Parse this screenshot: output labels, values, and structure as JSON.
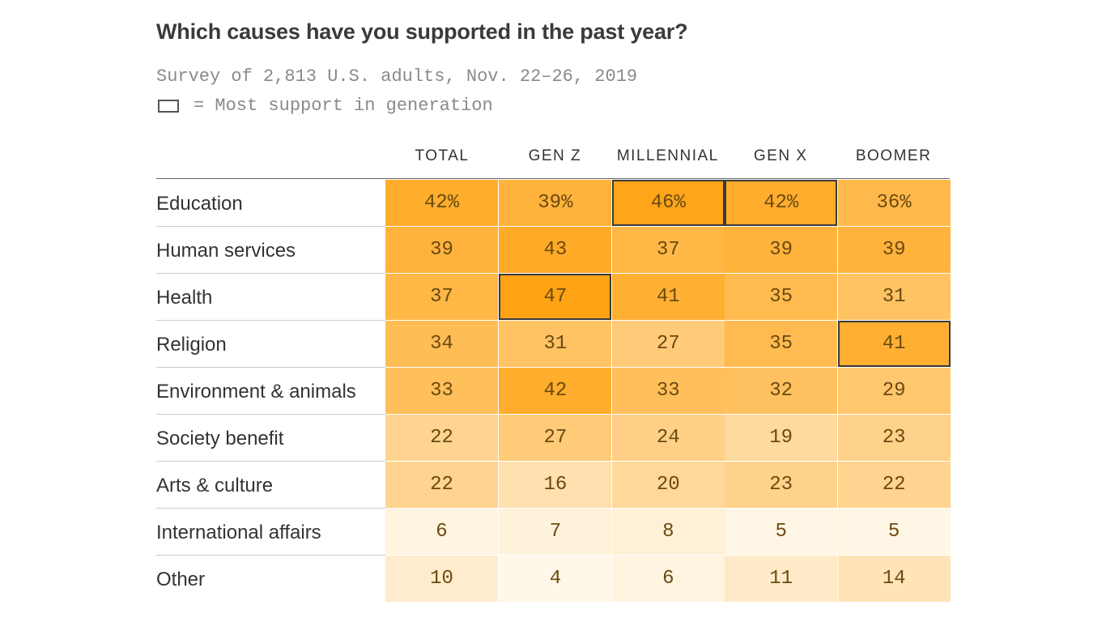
{
  "title": "Which causes have you supported in the past year?",
  "subtitle": "Survey of 2,813 U.S. adults, Nov. 22–26, 2019",
  "legend": "= Most support in generation",
  "chart_data": {
    "type": "heatmap",
    "columns": [
      "TOTAL",
      "GEN Z",
      "MILLENNIAL",
      "GEN X",
      "BOOMER"
    ],
    "rows": [
      "Education",
      "Human services",
      "Health",
      "Religion",
      "Environment & animals",
      "Society benefit",
      "Arts & culture",
      "International affairs",
      "Other"
    ],
    "values": [
      [
        42,
        39,
        46,
        42,
        36
      ],
      [
        39,
        43,
        37,
        39,
        39
      ],
      [
        37,
        47,
        41,
        35,
        31
      ],
      [
        34,
        31,
        27,
        35,
        41
      ],
      [
        33,
        42,
        33,
        32,
        29
      ],
      [
        22,
        27,
        24,
        19,
        23
      ],
      [
        22,
        16,
        20,
        23,
        22
      ],
      [
        6,
        7,
        8,
        5,
        5
      ],
      [
        10,
        4,
        6,
        11,
        14
      ]
    ],
    "unit": "%",
    "highlighted": [
      [
        0,
        2
      ],
      [
        0,
        3
      ],
      [
        2,
        1
      ],
      [
        3,
        4
      ]
    ],
    "color_low": "#fff8ea",
    "color_high": "#ffa314",
    "text_color": "#6b4a10"
  }
}
